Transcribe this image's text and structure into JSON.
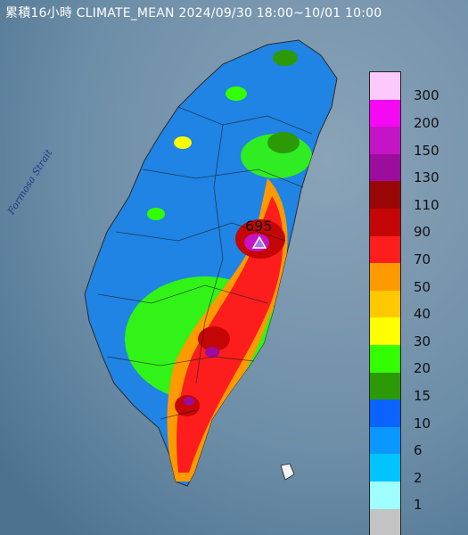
{
  "title": "累積16小時 CLIMATE_MEAN 2024/09/30 18:00~10/01 10:00",
  "sea_label": "Formosa Strait",
  "max_value": "695",
  "legend": {
    "labels": [
      "300",
      "200",
      "150",
      "130",
      "110",
      "90",
      "70",
      "50",
      "40",
      "30",
      "20",
      "15",
      "10",
      "6",
      "2",
      "1"
    ],
    "colors": [
      "#fbc9fb",
      "#f509f5",
      "#c513c6",
      "#9c0c9d",
      "#9a0606",
      "#c50606",
      "#fd1d1d",
      "#ff9900",
      "#ffc800",
      "#ffff00",
      "#33ff00",
      "#2c9a07",
      "#0b64fd",
      "#0a98ff",
      "#00c3ff",
      "#9ffefe",
      "#c3c3c3"
    ]
  }
}
